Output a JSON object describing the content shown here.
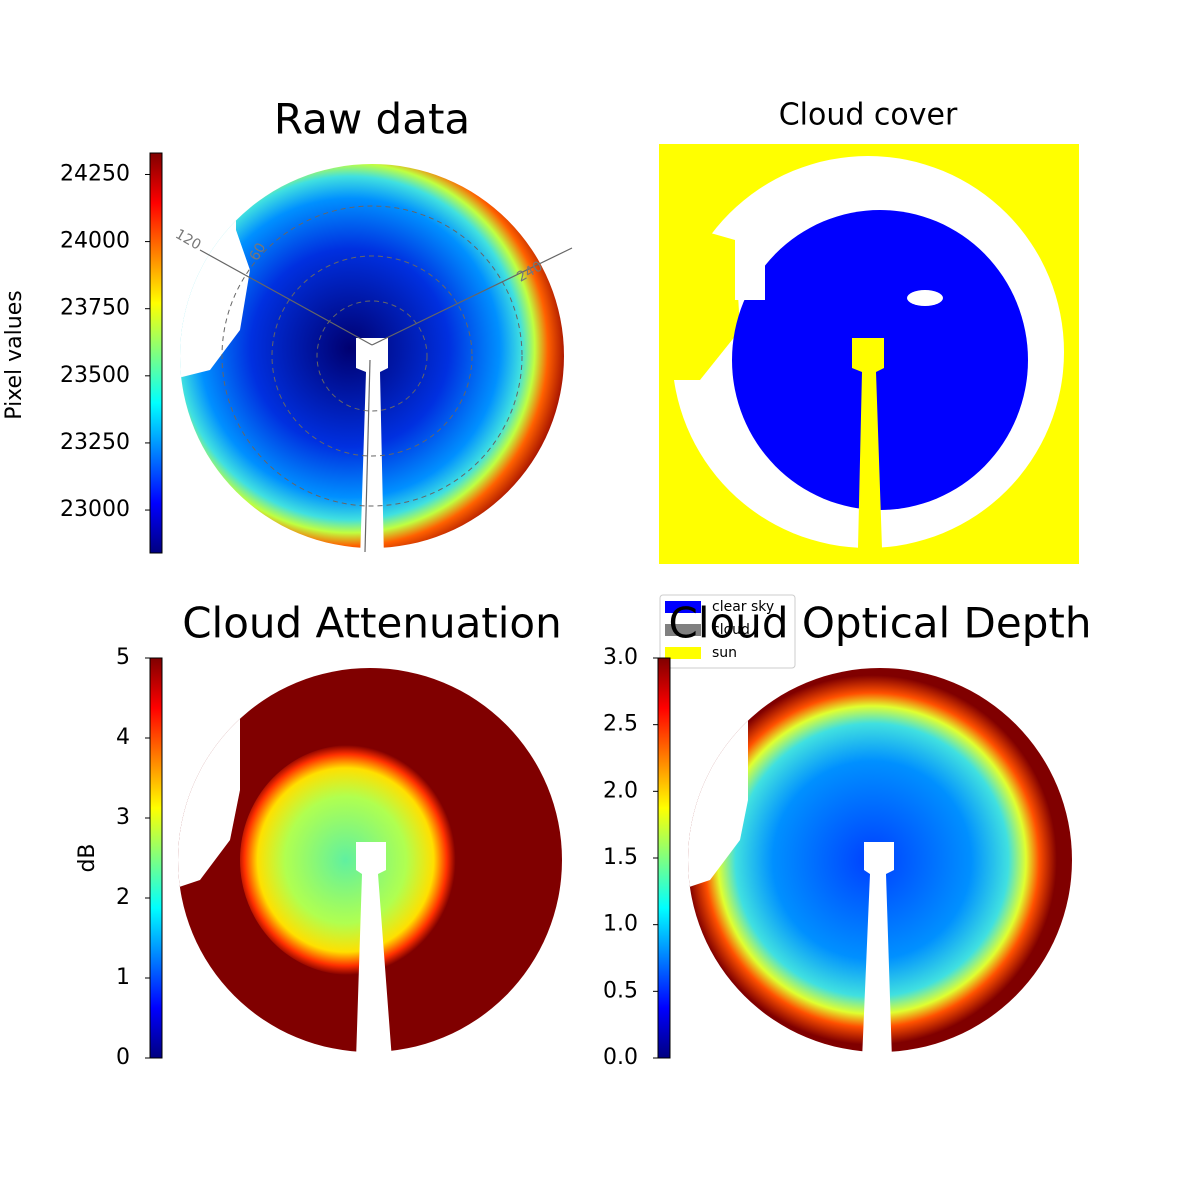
{
  "chart_data": [
    {
      "type": "image",
      "title": "Raw data",
      "colorbar": {
        "label": "Pixel values",
        "colormap": "jet",
        "ylim": [
          22840,
          24330
        ],
        "yticks": [
          23000,
          23250,
          23500,
          23750,
          24000,
          24250
        ]
      },
      "polar_labels": [
        "120",
        "60",
        "240"
      ]
    },
    {
      "type": "image",
      "title": "Cloud cover",
      "legend": [
        {
          "name": "clear sky",
          "color": "#0000ff"
        },
        {
          "name": "cloud",
          "color": "#808080"
        },
        {
          "name": "sun",
          "color": "#ffff00"
        }
      ]
    },
    {
      "type": "image",
      "title": "Cloud Attenuation",
      "colorbar": {
        "label": "dB",
        "colormap": "jet",
        "ylim": [
          0,
          5
        ],
        "yticks": [
          0,
          1,
          2,
          3,
          4,
          5
        ]
      }
    },
    {
      "type": "image",
      "title": "Cloud Optical Depth",
      "colorbar": {
        "colormap": "jet",
        "ylim": [
          0,
          3
        ],
        "yticks": [
          {
            "value": 0,
            "label": "0.0"
          },
          0.5,
          {
            "value": 1,
            "label": "1.0"
          },
          1.5,
          {
            "value": 2,
            "label": "2.0"
          },
          2.5,
          {
            "value": 3,
            "label": "3.0"
          }
        ]
      }
    }
  ]
}
